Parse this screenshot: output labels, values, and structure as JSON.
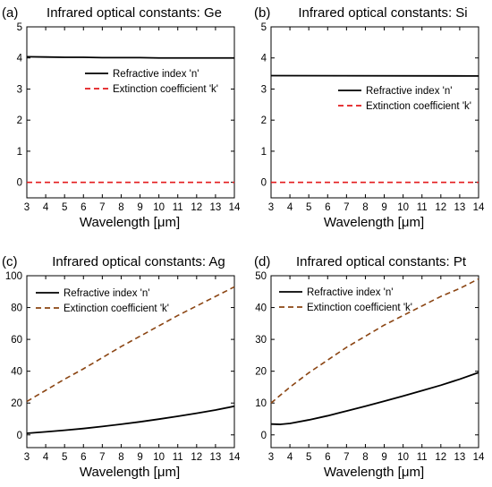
{
  "colors": {
    "n_line": "#000000",
    "k_line_ge_si": "#e31a1c",
    "k_line_ag_pt": "#8b4513",
    "axis": "#000000"
  },
  "chart_data": [
    {
      "type": "line",
      "panel_label": "(a)",
      "title": "Infrared optical constants: Ge",
      "xlabel": "Wavelength [μm]",
      "ylabel": "",
      "xlim": [
        3,
        14
      ],
      "ylim": [
        -0.5,
        5
      ],
      "xticks": [
        "3",
        "4",
        "5",
        "6",
        "7",
        "8",
        "9",
        "10",
        "11",
        "12",
        "13",
        "14"
      ],
      "yticks": [
        "0",
        "1",
        "2",
        "3",
        "4",
        "5"
      ],
      "legend_position": "top-right",
      "grid": false,
      "series": [
        {
          "name": "Refractive index 'n'",
          "style": "solid",
          "color": "#000000",
          "x": [
            3,
            4,
            5,
            6,
            7,
            8,
            9,
            10,
            11,
            12,
            13,
            14
          ],
          "y": [
            4.04,
            4.03,
            4.02,
            4.02,
            4.01,
            4.01,
            4.01,
            4.0,
            4.0,
            4.0,
            4.0,
            4.0
          ]
        },
        {
          "name": "Extinction coefficient 'k'",
          "style": "dashed",
          "color": "#e31a1c",
          "x": [
            3,
            14
          ],
          "y": [
            0,
            0
          ]
        }
      ]
    },
    {
      "type": "line",
      "panel_label": "(b)",
      "title": "Infrared optical constants: Si",
      "xlabel": "Wavelength [μm]",
      "ylabel": "",
      "xlim": [
        3,
        14
      ],
      "ylim": [
        -0.5,
        5
      ],
      "xticks": [
        "3",
        "4",
        "5",
        "6",
        "7",
        "8",
        "9",
        "10",
        "11",
        "12",
        "13",
        "14"
      ],
      "yticks": [
        "0",
        "1",
        "2",
        "3",
        "4",
        "5"
      ],
      "legend_position": "right",
      "grid": false,
      "series": [
        {
          "name": "Refractive index 'n'",
          "style": "solid",
          "color": "#000000",
          "x": [
            3,
            14
          ],
          "y": [
            3.43,
            3.42
          ]
        },
        {
          "name": "Extinction coefficient 'k'",
          "style": "dashed",
          "color": "#e31a1c",
          "x": [
            3,
            14
          ],
          "y": [
            0,
            0
          ]
        }
      ]
    },
    {
      "type": "line",
      "panel_label": "(c)",
      "title": "Infrared optical constants: Ag",
      "xlabel": "Wavelength [μm]",
      "ylabel": "",
      "xlim": [
        3,
        14
      ],
      "ylim": [
        -8,
        100
      ],
      "xticks": [
        "3",
        "4",
        "5",
        "6",
        "7",
        "8",
        "9",
        "10",
        "11",
        "12",
        "13",
        "14"
      ],
      "yticks": [
        "0",
        "20",
        "40",
        "60",
        "80",
        "100"
      ],
      "legend_position": "top-left",
      "grid": false,
      "series": [
        {
          "name": "Refractive index 'n'",
          "style": "solid",
          "color": "#000000",
          "x": [
            3,
            4,
            5,
            6,
            7,
            8,
            9,
            10,
            11,
            12,
            13,
            14
          ],
          "y": [
            1.0,
            1.9,
            2.9,
            4.0,
            5.3,
            6.7,
            8.2,
            9.9,
            11.7,
            13.6,
            15.6,
            18.0
          ]
        },
        {
          "name": "Extinction coefficient 'k'",
          "style": "dashed",
          "color": "#8b4513",
          "x": [
            3,
            4,
            5,
            6,
            7,
            8,
            9,
            10,
            11,
            12,
            13,
            14
          ],
          "y": [
            21,
            28,
            35,
            41.5,
            48.5,
            55.5,
            62,
            68.5,
            75,
            81,
            87,
            93
          ]
        }
      ]
    },
    {
      "type": "line",
      "panel_label": "(d)",
      "title": "Infrared optical constants: Pt",
      "xlabel": "Wavelength [μm]",
      "ylabel": "",
      "xlim": [
        3,
        14
      ],
      "ylim": [
        -4,
        50
      ],
      "xticks": [
        "3",
        "4",
        "5",
        "6",
        "7",
        "8",
        "9",
        "10",
        "11",
        "12",
        "13",
        "14"
      ],
      "yticks": [
        "0",
        "10",
        "20",
        "30",
        "40",
        "50"
      ],
      "legend_position": "top-left",
      "grid": false,
      "series": [
        {
          "name": "Refractive index 'n'",
          "style": "solid",
          "color": "#000000",
          "x": [
            3,
            3.5,
            4,
            5,
            6,
            7,
            8,
            9,
            10,
            11,
            12,
            13,
            14
          ],
          "y": [
            3.4,
            3.3,
            3.6,
            4.7,
            6.0,
            7.5,
            9.0,
            10.6,
            12.2,
            13.9,
            15.6,
            17.5,
            19.6
          ]
        },
        {
          "name": "Extinction coefficient 'k'",
          "style": "dashed",
          "color": "#8b4513",
          "x": [
            3,
            4,
            5,
            6,
            7,
            8,
            9,
            10,
            11,
            12,
            13,
            14
          ],
          "y": [
            10,
            15,
            19.5,
            23.5,
            27.5,
            31,
            34.5,
            37.5,
            40.5,
            43.5,
            46,
            49
          ]
        }
      ]
    }
  ]
}
